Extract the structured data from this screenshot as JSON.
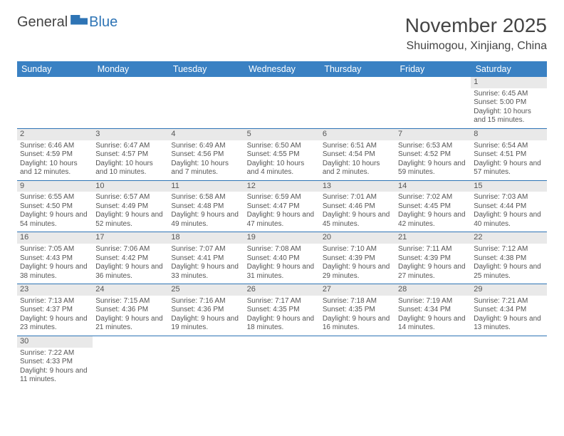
{
  "logo": {
    "part1": "General",
    "part2": "Blue"
  },
  "title": "November 2025",
  "location": "Shuimogou, Xinjiang, China",
  "colors": {
    "brand": "#3a81c3",
    "accent": "#2e74b5",
    "gray": "#e9e9e9"
  },
  "day_headers": [
    "Sunday",
    "Monday",
    "Tuesday",
    "Wednesday",
    "Thursday",
    "Friday",
    "Saturday"
  ],
  "weeks": [
    [
      {
        "n": "",
        "sr": "",
        "ss": "",
        "dl": ""
      },
      {
        "n": "",
        "sr": "",
        "ss": "",
        "dl": ""
      },
      {
        "n": "",
        "sr": "",
        "ss": "",
        "dl": ""
      },
      {
        "n": "",
        "sr": "",
        "ss": "",
        "dl": ""
      },
      {
        "n": "",
        "sr": "",
        "ss": "",
        "dl": ""
      },
      {
        "n": "",
        "sr": "",
        "ss": "",
        "dl": ""
      },
      {
        "n": "1",
        "sr": "Sunrise: 6:45 AM",
        "ss": "Sunset: 5:00 PM",
        "dl": "Daylight: 10 hours and 15 minutes."
      }
    ],
    [
      {
        "n": "2",
        "sr": "Sunrise: 6:46 AM",
        "ss": "Sunset: 4:59 PM",
        "dl": "Daylight: 10 hours and 12 minutes."
      },
      {
        "n": "3",
        "sr": "Sunrise: 6:47 AM",
        "ss": "Sunset: 4:57 PM",
        "dl": "Daylight: 10 hours and 10 minutes."
      },
      {
        "n": "4",
        "sr": "Sunrise: 6:49 AM",
        "ss": "Sunset: 4:56 PM",
        "dl": "Daylight: 10 hours and 7 minutes."
      },
      {
        "n": "5",
        "sr": "Sunrise: 6:50 AM",
        "ss": "Sunset: 4:55 PM",
        "dl": "Daylight: 10 hours and 4 minutes."
      },
      {
        "n": "6",
        "sr": "Sunrise: 6:51 AM",
        "ss": "Sunset: 4:54 PM",
        "dl": "Daylight: 10 hours and 2 minutes."
      },
      {
        "n": "7",
        "sr": "Sunrise: 6:53 AM",
        "ss": "Sunset: 4:52 PM",
        "dl": "Daylight: 9 hours and 59 minutes."
      },
      {
        "n": "8",
        "sr": "Sunrise: 6:54 AM",
        "ss": "Sunset: 4:51 PM",
        "dl": "Daylight: 9 hours and 57 minutes."
      }
    ],
    [
      {
        "n": "9",
        "sr": "Sunrise: 6:55 AM",
        "ss": "Sunset: 4:50 PM",
        "dl": "Daylight: 9 hours and 54 minutes."
      },
      {
        "n": "10",
        "sr": "Sunrise: 6:57 AM",
        "ss": "Sunset: 4:49 PM",
        "dl": "Daylight: 9 hours and 52 minutes."
      },
      {
        "n": "11",
        "sr": "Sunrise: 6:58 AM",
        "ss": "Sunset: 4:48 PM",
        "dl": "Daylight: 9 hours and 49 minutes."
      },
      {
        "n": "12",
        "sr": "Sunrise: 6:59 AM",
        "ss": "Sunset: 4:47 PM",
        "dl": "Daylight: 9 hours and 47 minutes."
      },
      {
        "n": "13",
        "sr": "Sunrise: 7:01 AM",
        "ss": "Sunset: 4:46 PM",
        "dl": "Daylight: 9 hours and 45 minutes."
      },
      {
        "n": "14",
        "sr": "Sunrise: 7:02 AM",
        "ss": "Sunset: 4:45 PM",
        "dl": "Daylight: 9 hours and 42 minutes."
      },
      {
        "n": "15",
        "sr": "Sunrise: 7:03 AM",
        "ss": "Sunset: 4:44 PM",
        "dl": "Daylight: 9 hours and 40 minutes."
      }
    ],
    [
      {
        "n": "16",
        "sr": "Sunrise: 7:05 AM",
        "ss": "Sunset: 4:43 PM",
        "dl": "Daylight: 9 hours and 38 minutes."
      },
      {
        "n": "17",
        "sr": "Sunrise: 7:06 AM",
        "ss": "Sunset: 4:42 PM",
        "dl": "Daylight: 9 hours and 36 minutes."
      },
      {
        "n": "18",
        "sr": "Sunrise: 7:07 AM",
        "ss": "Sunset: 4:41 PM",
        "dl": "Daylight: 9 hours and 33 minutes."
      },
      {
        "n": "19",
        "sr": "Sunrise: 7:08 AM",
        "ss": "Sunset: 4:40 PM",
        "dl": "Daylight: 9 hours and 31 minutes."
      },
      {
        "n": "20",
        "sr": "Sunrise: 7:10 AM",
        "ss": "Sunset: 4:39 PM",
        "dl": "Daylight: 9 hours and 29 minutes."
      },
      {
        "n": "21",
        "sr": "Sunrise: 7:11 AM",
        "ss": "Sunset: 4:39 PM",
        "dl": "Daylight: 9 hours and 27 minutes."
      },
      {
        "n": "22",
        "sr": "Sunrise: 7:12 AM",
        "ss": "Sunset: 4:38 PM",
        "dl": "Daylight: 9 hours and 25 minutes."
      }
    ],
    [
      {
        "n": "23",
        "sr": "Sunrise: 7:13 AM",
        "ss": "Sunset: 4:37 PM",
        "dl": "Daylight: 9 hours and 23 minutes."
      },
      {
        "n": "24",
        "sr": "Sunrise: 7:15 AM",
        "ss": "Sunset: 4:36 PM",
        "dl": "Daylight: 9 hours and 21 minutes."
      },
      {
        "n": "25",
        "sr": "Sunrise: 7:16 AM",
        "ss": "Sunset: 4:36 PM",
        "dl": "Daylight: 9 hours and 19 minutes."
      },
      {
        "n": "26",
        "sr": "Sunrise: 7:17 AM",
        "ss": "Sunset: 4:35 PM",
        "dl": "Daylight: 9 hours and 18 minutes."
      },
      {
        "n": "27",
        "sr": "Sunrise: 7:18 AM",
        "ss": "Sunset: 4:35 PM",
        "dl": "Daylight: 9 hours and 16 minutes."
      },
      {
        "n": "28",
        "sr": "Sunrise: 7:19 AM",
        "ss": "Sunset: 4:34 PM",
        "dl": "Daylight: 9 hours and 14 minutes."
      },
      {
        "n": "29",
        "sr": "Sunrise: 7:21 AM",
        "ss": "Sunset: 4:34 PM",
        "dl": "Daylight: 9 hours and 13 minutes."
      }
    ],
    [
      {
        "n": "30",
        "sr": "Sunrise: 7:22 AM",
        "ss": "Sunset: 4:33 PM",
        "dl": "Daylight: 9 hours and 11 minutes."
      },
      {
        "n": "",
        "sr": "",
        "ss": "",
        "dl": ""
      },
      {
        "n": "",
        "sr": "",
        "ss": "",
        "dl": ""
      },
      {
        "n": "",
        "sr": "",
        "ss": "",
        "dl": ""
      },
      {
        "n": "",
        "sr": "",
        "ss": "",
        "dl": ""
      },
      {
        "n": "",
        "sr": "",
        "ss": "",
        "dl": ""
      },
      {
        "n": "",
        "sr": "",
        "ss": "",
        "dl": ""
      }
    ]
  ]
}
